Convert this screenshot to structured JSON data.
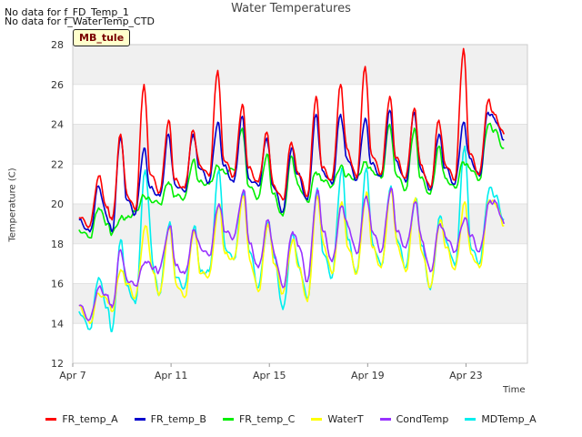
{
  "notes": [
    "No data for f_FD_Temp_1",
    "No data for f_WaterTemp_CTD"
  ],
  "site_tag": "MB_tule",
  "chart_data": {
    "type": "line",
    "title": "Water Temperatures",
    "xlabel": "Time",
    "ylabel": "Temperature (C)",
    "xlim": [
      7,
      25.5
    ],
    "ylim": [
      12,
      28
    ],
    "yticks": [
      12,
      14,
      16,
      18,
      20,
      22,
      24,
      26,
      28
    ],
    "xticks": [
      {
        "value": 7,
        "label": "Apr 7"
      },
      {
        "value": 11,
        "label": "Apr 11"
      },
      {
        "value": 15,
        "label": "Apr 15"
      },
      {
        "value": 19,
        "label": "Apr 19"
      },
      {
        "value": 23,
        "label": "Apr 23"
      }
    ],
    "grid": true,
    "legend_position": "bottom",
    "x_units": "day of April",
    "series": [
      {
        "name": "FR_temp_A",
        "color": "#ff0000",
        "x": [
          7.25,
          7.7,
          8.05,
          8.4,
          8.6,
          8.95,
          9.2,
          9.55,
          9.9,
          10.15,
          10.55,
          10.9,
          11.15,
          11.55,
          11.9,
          12.15,
          12.55,
          12.9,
          13.15,
          13.55,
          13.9,
          14.15,
          14.55,
          14.9,
          15.15,
          15.55,
          15.9,
          16.15,
          16.55,
          16.9,
          17.15,
          17.55,
          17.9,
          18.15,
          18.55,
          18.9,
          19.15,
          19.55,
          19.9,
          20.15,
          20.55,
          20.9,
          21.15,
          21.55,
          21.9,
          22.15,
          22.55,
          22.9,
          23.15,
          23.55,
          23.9,
          24.15,
          24.55
        ],
        "y": [
          19.3,
          18.9,
          21.4,
          19.8,
          19.2,
          23.5,
          20.5,
          19.7,
          26.0,
          21.5,
          20.6,
          24.2,
          21.2,
          20.8,
          23.7,
          22.0,
          21.4,
          26.7,
          22.2,
          21.4,
          25.0,
          21.8,
          21.1,
          23.6,
          21.0,
          20.2,
          23.1,
          21.6,
          20.4,
          25.4,
          21.8,
          21.2,
          26.0,
          22.8,
          21.3,
          26.9,
          22.5,
          21.5,
          25.4,
          22.3,
          21.3,
          24.8,
          22.0,
          20.8,
          24.2,
          22.0,
          21.2,
          27.8,
          22.5,
          21.5,
          25.2,
          24.5,
          23.5
        ]
      },
      {
        "name": "FR_temp_B",
        "color": "#0000cc",
        "x": [
          7.25,
          7.7,
          8.05,
          8.4,
          8.6,
          8.95,
          9.2,
          9.55,
          9.9,
          10.15,
          10.55,
          10.9,
          11.15,
          11.55,
          11.9,
          12.15,
          12.55,
          12.9,
          13.15,
          13.55,
          13.9,
          14.15,
          14.55,
          14.9,
          15.15,
          15.55,
          15.9,
          16.15,
          16.55,
          16.9,
          17.15,
          17.55,
          17.9,
          18.15,
          18.55,
          18.9,
          19.15,
          19.55,
          19.9,
          20.15,
          20.55,
          20.9,
          21.15,
          21.55,
          21.9,
          22.15,
          22.55,
          22.9,
          23.15,
          23.55,
          23.9,
          24.15,
          24.55
        ],
        "y": [
          19.2,
          18.6,
          20.9,
          19.3,
          18.6,
          23.4,
          20.2,
          19.5,
          22.8,
          20.8,
          20.4,
          23.5,
          21.0,
          20.6,
          23.5,
          21.8,
          21.1,
          24.1,
          21.9,
          21.1,
          24.4,
          21.3,
          20.9,
          23.3,
          20.9,
          19.6,
          22.8,
          21.5,
          20.2,
          24.5,
          21.7,
          21.0,
          24.5,
          22.3,
          21.2,
          24.3,
          22.0,
          21.4,
          24.7,
          22.2,
          21.1,
          24.6,
          21.8,
          20.7,
          23.5,
          21.8,
          21.0,
          24.1,
          22.3,
          21.4,
          24.6,
          24.3,
          23.2
        ]
      },
      {
        "name": "FR_temp_C",
        "color": "#00ee00",
        "x": [
          7.25,
          7.7,
          8.05,
          8.4,
          8.6,
          8.95,
          9.2,
          9.55,
          9.9,
          10.15,
          10.55,
          10.9,
          11.15,
          11.55,
          11.9,
          12.15,
          12.55,
          12.9,
          13.15,
          13.55,
          13.9,
          14.15,
          14.55,
          14.9,
          15.15,
          15.55,
          15.9,
          16.15,
          16.55,
          16.9,
          17.15,
          17.55,
          17.9,
          18.15,
          18.55,
          18.9,
          19.15,
          19.55,
          19.9,
          20.15,
          20.55,
          20.9,
          21.15,
          21.55,
          21.9,
          22.15,
          22.55,
          22.9,
          23.15,
          23.55,
          23.9,
          24.15,
          24.55
        ],
        "y": [
          18.7,
          18.3,
          19.8,
          19.0,
          18.5,
          19.3,
          19.3,
          19.6,
          20.4,
          20.2,
          20.0,
          21.1,
          20.4,
          20.3,
          22.2,
          21.1,
          21.0,
          21.9,
          21.6,
          21.7,
          23.8,
          20.9,
          20.3,
          22.5,
          20.5,
          19.4,
          22.4,
          21.0,
          20.1,
          21.6,
          21.2,
          20.9,
          21.9,
          21.4,
          21.3,
          22.1,
          21.7,
          21.3,
          24.0,
          21.5,
          20.7,
          23.8,
          21.3,
          20.5,
          22.9,
          21.3,
          20.8,
          22.1,
          21.8,
          21.2,
          24.0,
          23.7,
          22.8
        ]
      },
      {
        "name": "WaterT",
        "color": "#ffff00",
        "x": [
          7.25,
          7.7,
          8.05,
          8.4,
          8.6,
          8.95,
          9.2,
          9.55,
          9.95,
          10.3,
          10.5,
          10.95,
          11.2,
          11.55,
          11.95,
          12.2,
          12.55,
          12.95,
          13.2,
          13.55,
          13.95,
          14.2,
          14.55,
          14.95,
          15.2,
          15.55,
          15.95,
          16.2,
          16.55,
          16.95,
          17.2,
          17.55,
          17.95,
          18.2,
          18.55,
          18.95,
          19.2,
          19.55,
          19.95,
          20.2,
          20.55,
          20.95,
          21.2,
          21.55,
          21.95,
          22.2,
          22.55,
          22.95,
          23.2,
          23.55,
          23.95,
          24.2,
          24.55
        ],
        "y": [
          14.9,
          14.0,
          15.5,
          15.2,
          14.6,
          16.7,
          16.0,
          15.3,
          18.9,
          16.5,
          15.4,
          18.8,
          16.0,
          15.3,
          18.7,
          16.5,
          16.4,
          20.0,
          17.5,
          17.2,
          20.4,
          17.2,
          15.6,
          19.0,
          17.0,
          15.5,
          18.2,
          16.8,
          15.1,
          20.4,
          18.0,
          16.5,
          20.1,
          17.8,
          16.5,
          20.6,
          17.8,
          16.8,
          20.7,
          18.0,
          16.6,
          20.3,
          17.6,
          15.8,
          19.2,
          17.8,
          16.7,
          20.1,
          17.5,
          16.8,
          20.2,
          20.0,
          18.9
        ]
      },
      {
        "name": "CondTemp",
        "color": "#9933ff",
        "x": [
          7.25,
          7.7,
          8.05,
          8.4,
          8.6,
          8.95,
          9.2,
          9.55,
          9.95,
          10.3,
          10.5,
          10.95,
          11.2,
          11.55,
          11.95,
          12.2,
          12.55,
          12.95,
          13.2,
          13.55,
          13.95,
          14.2,
          14.55,
          14.95,
          15.2,
          15.55,
          15.95,
          16.2,
          16.55,
          16.95,
          17.2,
          17.55,
          17.95,
          18.2,
          18.55,
          18.95,
          19.2,
          19.55,
          19.95,
          20.2,
          20.55,
          20.95,
          21.2,
          21.55,
          21.95,
          22.2,
          22.55,
          22.95,
          23.2,
          23.55,
          23.95,
          24.2,
          24.55
        ],
        "y": [
          14.9,
          14.2,
          15.8,
          15.4,
          14.8,
          17.7,
          16.2,
          15.9,
          17.1,
          16.8,
          16.6,
          18.9,
          16.9,
          16.5,
          18.7,
          17.8,
          17.4,
          20.0,
          18.6,
          18.3,
          20.7,
          18.0,
          16.8,
          19.2,
          17.5,
          15.8,
          18.6,
          17.9,
          16.1,
          20.7,
          18.6,
          17.1,
          19.9,
          18.9,
          17.5,
          20.4,
          18.6,
          17.6,
          20.8,
          18.6,
          17.8,
          20.1,
          18.2,
          16.6,
          19.0,
          18.3,
          17.6,
          19.3,
          18.4,
          17.6,
          20.1,
          20.1,
          19.0
        ]
      },
      {
        "name": "MDTemp_A",
        "color": "#00eeee",
        "x": [
          7.25,
          7.7,
          8.05,
          8.4,
          8.6,
          8.95,
          9.2,
          9.55,
          9.95,
          10.3,
          10.5,
          10.95,
          11.2,
          11.55,
          11.95,
          12.2,
          12.55,
          12.95,
          13.2,
          13.55,
          13.95,
          14.2,
          14.55,
          14.95,
          15.2,
          15.55,
          15.95,
          16.2,
          16.55,
          16.95,
          17.2,
          17.55,
          17.95,
          18.2,
          18.55,
          18.95,
          19.2,
          19.55,
          19.95,
          20.2,
          20.55,
          20.95,
          21.2,
          21.55,
          21.95,
          22.2,
          22.55,
          22.95,
          23.2,
          23.55,
          23.95,
          24.2,
          24.55
        ],
        "y": [
          14.6,
          13.7,
          16.3,
          14.8,
          13.6,
          18.2,
          15.9,
          15.0,
          21.7,
          16.7,
          15.4,
          19.1,
          16.3,
          15.8,
          18.9,
          16.6,
          16.6,
          21.7,
          17.8,
          17.2,
          20.6,
          17.6,
          15.8,
          19.1,
          17.3,
          14.7,
          18.5,
          16.9,
          15.2,
          20.8,
          17.5,
          16.3,
          21.8,
          18.2,
          16.5,
          21.8,
          18.0,
          16.9,
          20.9,
          18.2,
          16.8,
          20.3,
          17.9,
          15.7,
          19.4,
          18.1,
          16.9,
          22.9,
          17.8,
          17.0,
          20.8,
          20.4,
          19.2
        ]
      }
    ]
  }
}
